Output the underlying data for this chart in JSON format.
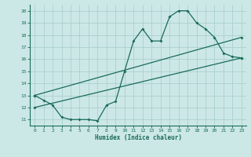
{
  "title": "",
  "xlabel": "Humidex (Indice chaleur)",
  "ylabel": "",
  "bg_color": "#cce8e6",
  "grid_color": "#aad0ce",
  "line_color": "#1a6b5a",
  "xlim": [
    -0.5,
    23.5
  ],
  "ylim": [
    10.5,
    20.5
  ],
  "xticks": [
    0,
    1,
    2,
    3,
    4,
    5,
    6,
    7,
    8,
    9,
    10,
    11,
    12,
    13,
    14,
    15,
    16,
    17,
    18,
    19,
    20,
    21,
    22,
    23
  ],
  "yticks": [
    11,
    12,
    13,
    14,
    15,
    16,
    17,
    18,
    19,
    20
  ],
  "line1_x": [
    0,
    1,
    2,
    3,
    4,
    5,
    6,
    7,
    8,
    9,
    10,
    11,
    12,
    13,
    14,
    15,
    16,
    17,
    18,
    19,
    20,
    21,
    22,
    23
  ],
  "line1_y": [
    13.0,
    12.6,
    12.2,
    11.2,
    11.0,
    11.0,
    11.0,
    10.9,
    12.2,
    12.5,
    15.0,
    17.5,
    18.5,
    17.5,
    17.5,
    19.5,
    20.0,
    20.0,
    19.0,
    18.5,
    17.8,
    16.5,
    16.2,
    16.1
  ],
  "line2_x": [
    0,
    23
  ],
  "line2_y": [
    13.0,
    17.8
  ],
  "line3_x": [
    0,
    23
  ],
  "line3_y": [
    12.0,
    16.1
  ]
}
